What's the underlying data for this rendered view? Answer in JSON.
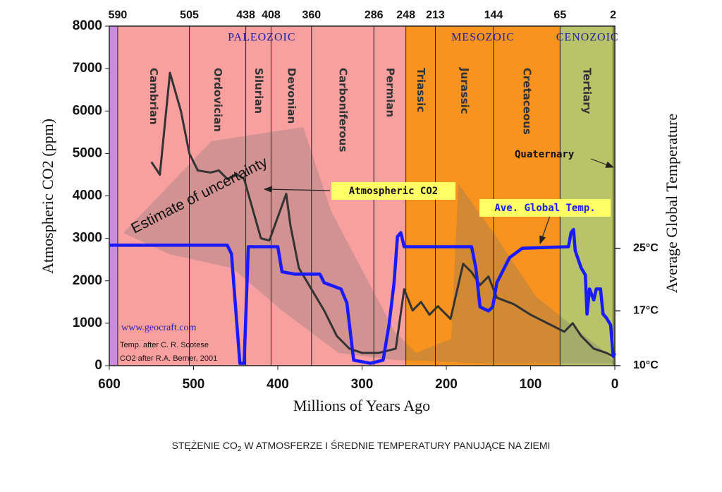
{
  "chart_data": {
    "type": "line",
    "xlim": [
      600,
      0
    ],
    "xticks": [
      600,
      500,
      400,
      300,
      200,
      100,
      0
    ],
    "ylim": [
      0,
      8000
    ],
    "yticks": [
      0,
      1000,
      2000,
      3000,
      4000,
      5000,
      6000,
      7000,
      8000
    ],
    "y2lim": [
      10,
      53.4
    ],
    "y2ticks": [
      {
        "value": 25,
        "label": "25°C"
      },
      {
        "value": 17,
        "label": "17°C"
      },
      {
        "value": 10,
        "label": "10°C"
      }
    ],
    "top_ticks": [
      590,
      505,
      438,
      408,
      360,
      286,
      248,
      213,
      144,
      65,
      2
    ],
    "periods": [
      "Cambrian",
      "Ordovician",
      "Silurian",
      "Devonian",
      "Carboniferous",
      "Permian",
      "Triassic",
      "Jurassic",
      "Cretaceous",
      "Tertiary"
    ],
    "eras": [
      {
        "name": "PALEOZOIC",
        "start": 590,
        "end": 248,
        "color": "#f8a0a0"
      },
      {
        "name": "MESOZOIC",
        "start": 248,
        "end": 65,
        "color": "#f7931e"
      },
      {
        "name": "CENOZOIC",
        "start": 65,
        "end": 0,
        "color": "#b9c46a"
      }
    ],
    "precambrian_color": "#c98ae0",
    "x_label": "Millions of Years Ago",
    "y_label": "Atmospheric CO2 (ppm)",
    "y2_label": "Average Global Temperature",
    "series": [
      {
        "name": "Atmospheric CO2",
        "color": "#333333",
        "x": [
          550,
          540,
          528,
          515,
          505,
          495,
          480,
          470,
          460,
          448,
          440,
          430,
          420,
          410,
          400,
          390,
          385,
          375,
          360,
          345,
          330,
          315,
          300,
          280,
          260,
          250,
          240,
          230,
          220,
          210,
          200,
          195,
          180,
          170,
          160,
          150,
          140,
          120,
          100,
          80,
          60,
          50,
          40,
          25,
          10,
          0
        ],
        "values": [
          4800,
          4500,
          6900,
          6000,
          5000,
          4600,
          4550,
          4600,
          4400,
          4500,
          4400,
          3700,
          3000,
          2950,
          3500,
          4050,
          3300,
          2300,
          1800,
          1300,
          700,
          400,
          300,
          300,
          400,
          1800,
          1300,
          1500,
          1200,
          1400,
          1200,
          1100,
          2400,
          2200,
          1900,
          2100,
          1600,
          1450,
          1200,
          1000,
          800,
          1000,
          700,
          400,
          300,
          200
        ]
      },
      {
        "name": "Ave. Global Temp.",
        "color": "#1a1aff",
        "axis": "y2",
        "x": [
          600,
          460,
          455,
          445,
          440,
          435,
          400,
          395,
          380,
          350,
          345,
          325,
          318,
          310,
          290,
          275,
          268,
          262,
          258,
          254,
          250,
          170,
          165,
          160,
          150,
          145,
          140,
          125,
          110,
          55,
          52,
          49,
          47,
          40,
          35,
          33,
          30,
          25,
          22,
          17,
          14,
          10,
          5,
          2,
          0
        ],
        "values": [
          25.4,
          25.4,
          24.3,
          10.3,
          10.3,
          25.2,
          25.2,
          22,
          21.7,
          21.7,
          20.6,
          19.8,
          18,
          10.7,
          10.3,
          10.7,
          15.2,
          20.6,
          26.5,
          27,
          25.2,
          25.2,
          22.5,
          17.5,
          17,
          17.5,
          20.6,
          23.8,
          25,
          25.2,
          27,
          27.4,
          24.7,
          22.5,
          21.6,
          16.6,
          19.8,
          18.4,
          19.8,
          19.8,
          16.6,
          16.1,
          15.2,
          11.2,
          11.6
        ]
      }
    ],
    "annotations": {
      "uncertainty": "Estimate of uncertainty",
      "quaternary": "Quaternary",
      "source_url": "www.geocraft.com",
      "temp_source": "Temp. after C. R. Scotese",
      "co2_source": "CO2 after R.A. Berner, 2001"
    },
    "caption": [
      "STĘŻENIE CO",
      "2",
      " W ATMOSFERZE I ŚREDNIE TEMPERATURY PANUJĄCE NA ZIEMI"
    ]
  }
}
